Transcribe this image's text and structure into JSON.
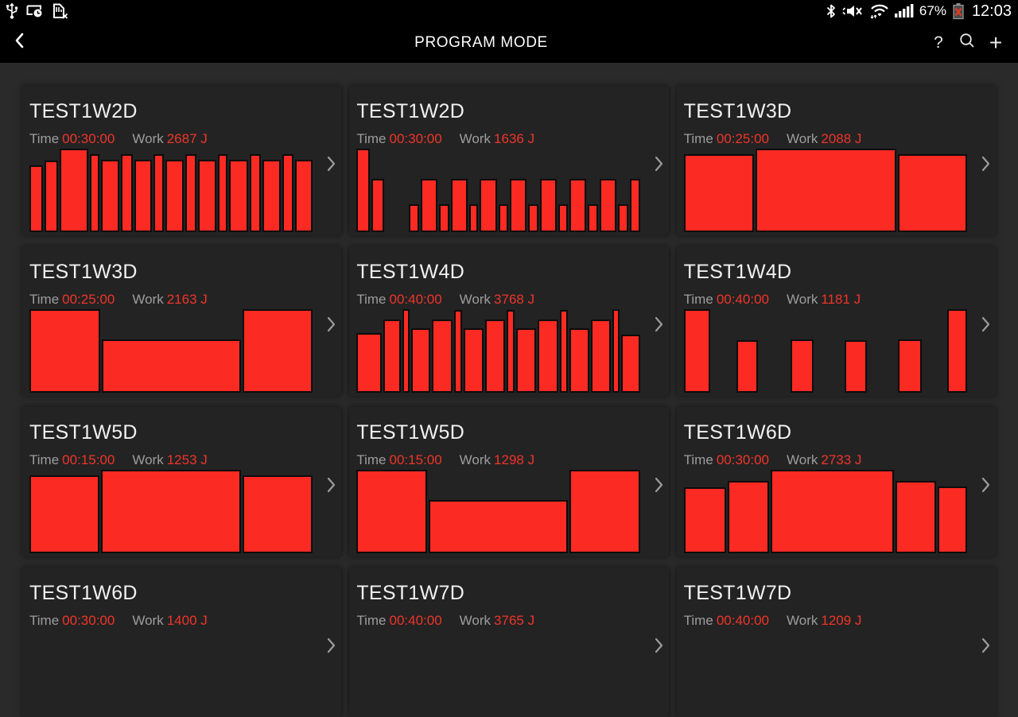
{
  "status_bar": {
    "time": "12:03",
    "battery_percent": "67%",
    "left_icons": [
      "usb-icon",
      "screen-share-clock-icon",
      "sim-missing-icon"
    ],
    "right_icons": [
      "bluetooth-icon",
      "mute-icon",
      "wifi-icon",
      "signal-strength-icon",
      "battery-error-icon"
    ]
  },
  "action_bar": {
    "title": "PROGRAM MODE",
    "help_glyph": "?",
    "add_glyph": "+"
  },
  "labels": {
    "time": "Time",
    "work": "Work",
    "work_unit": "J"
  },
  "colors": {
    "bar_red": "#fb2a23",
    "value_red": "#ef352a",
    "card_bg": "#232323",
    "page_bg": "#2a2a2a",
    "bar_border": "#0c0c0c",
    "label_gray": "#9d9d9d",
    "title_white": "#f1f1f1",
    "topbar_black": "#000000"
  },
  "programs": [
    {
      "title": "TEST1W2D",
      "time": "00:30:00",
      "work": "2687",
      "bars": [
        [
          1.3,
          80
        ],
        [
          1.3,
          86
        ],
        [
          3.1,
          100
        ],
        [
          0.85,
          93
        ],
        [
          1.9,
          87
        ],
        [
          1.0,
          93
        ],
        [
          1.85,
          87
        ],
        [
          0.85,
          93
        ],
        [
          1.9,
          87
        ],
        [
          1.0,
          93
        ],
        [
          1.85,
          87
        ],
        [
          0.85,
          93
        ],
        [
          1.9,
          87
        ],
        [
          1.0,
          93
        ],
        [
          1.9,
          87
        ],
        [
          1.0,
          93
        ],
        [
          1.8,
          87
        ]
      ]
    },
    {
      "title": "TEST1W2D",
      "time": "00:30:00",
      "work": "1636",
      "bars": [
        [
          1.45,
          100
        ],
        [
          1.4,
          64
        ],
        [
          3.25,
          0
        ],
        [
          1.0,
          33
        ],
        [
          2.0,
          64
        ],
        [
          1.0,
          33
        ],
        [
          2.0,
          64
        ],
        [
          0.9,
          33
        ],
        [
          2.0,
          64
        ],
        [
          1.0,
          33
        ],
        [
          2.0,
          64
        ],
        [
          1.0,
          33
        ],
        [
          2.0,
          64
        ],
        [
          1.0,
          33
        ],
        [
          2.0,
          64
        ],
        [
          1.0,
          33
        ],
        [
          2.0,
          64
        ],
        [
          1.0,
          33
        ],
        [
          1.05,
          64
        ]
      ]
    },
    {
      "title": "TEST1W3D",
      "time": "00:25:00",
      "work": "2088",
      "bars": [
        [
          1.0,
          93
        ],
        [
          2.06,
          100
        ],
        [
          0.99,
          93
        ]
      ]
    },
    {
      "title": "TEST1W3D",
      "time": "00:25:00",
      "work": "2163",
      "bars": [
        [
          1.0,
          100
        ],
        [
          2.02,
          64
        ],
        [
          0.99,
          100
        ]
      ]
    },
    {
      "title": "TEST1W4D",
      "time": "00:40:00",
      "work": "3768",
      "bars": [
        [
          2.2,
          71
        ],
        [
          1.5,
          88
        ],
        [
          0.4,
          100
        ],
        [
          1.6,
          77
        ],
        [
          1.7,
          88
        ],
        [
          0.5,
          99
        ],
        [
          1.7,
          77
        ],
        [
          1.7,
          88
        ],
        [
          0.47,
          99
        ],
        [
          1.7,
          77
        ],
        [
          1.7,
          88
        ],
        [
          0.5,
          99
        ],
        [
          1.7,
          77
        ],
        [
          1.7,
          88
        ],
        [
          0.4,
          100
        ],
        [
          1.56,
          70
        ]
      ]
    },
    {
      "title": "TEST1W4D",
      "time": "00:40:00",
      "work": "1181",
      "bars": [
        [
          1.03,
          100
        ],
        [
          1.02,
          0
        ],
        [
          0.8,
          63
        ],
        [
          1.27,
          0
        ],
        [
          0.88,
          64
        ],
        [
          1.23,
          0
        ],
        [
          0.82,
          63
        ],
        [
          1.22,
          0
        ],
        [
          0.91,
          64
        ],
        [
          0.97,
          0
        ],
        [
          0.75,
          100
        ]
      ]
    },
    {
      "title": "TEST1W5D",
      "time": "00:15:00",
      "work": "1253",
      "bars": [
        [
          1.0,
          93
        ],
        [
          2.05,
          100
        ],
        [
          1.0,
          93
        ]
      ]
    },
    {
      "title": "TEST1W5D",
      "time": "00:15:00",
      "work": "1298",
      "bars": [
        [
          1.0,
          100
        ],
        [
          2.01,
          64
        ],
        [
          1.0,
          100
        ]
      ]
    },
    {
      "title": "TEST1W6D",
      "time": "00:30:00",
      "work": "2733",
      "bars": [
        [
          1.05,
          79
        ],
        [
          1.0,
          87
        ],
        [
          3.2,
          100
        ],
        [
          0.99,
          87
        ],
        [
          0.7,
          80
        ]
      ]
    },
    {
      "title": "TEST1W6D",
      "time": "00:30:00",
      "work": "1400",
      "bars": []
    },
    {
      "title": "TEST1W7D",
      "time": "00:40:00",
      "work": "3765",
      "bars": []
    },
    {
      "title": "TEST1W7D",
      "time": "00:40:00",
      "work": "1209",
      "bars": []
    }
  ]
}
